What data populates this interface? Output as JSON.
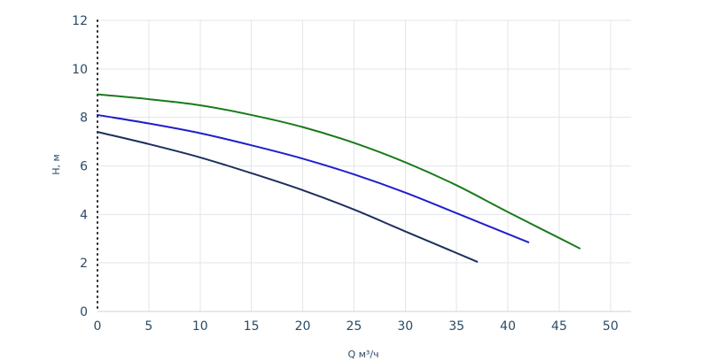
{
  "chart_data": {
    "type": "line",
    "xlabel": "Q м³/ч",
    "ylabel": "H, м",
    "xlim": [
      0,
      52
    ],
    "ylim": [
      0,
      12
    ],
    "xticks": [
      0,
      5,
      10,
      15,
      20,
      25,
      30,
      35,
      40,
      45,
      50
    ],
    "yticks": [
      0,
      2,
      4,
      6,
      8,
      10,
      12
    ],
    "grid": true,
    "series": [
      {
        "color": "#1a7a1a",
        "x": [
          0,
          5,
          10,
          15,
          20,
          25,
          30,
          35,
          40,
          47
        ],
        "y": [
          8.95,
          8.75,
          8.5,
          8.1,
          7.6,
          6.95,
          6.15,
          5.2,
          4.1,
          2.6
        ]
      },
      {
        "color": "#1f1fcc",
        "x": [
          0,
          5,
          10,
          15,
          20,
          25,
          30,
          35,
          42
        ],
        "y": [
          8.1,
          7.75,
          7.35,
          6.85,
          6.3,
          5.65,
          4.9,
          4.05,
          2.85
        ]
      },
      {
        "color": "#1c2f5e",
        "x": [
          0,
          5,
          10,
          15,
          20,
          25,
          30,
          37
        ],
        "y": [
          7.4,
          6.9,
          6.35,
          5.7,
          5.0,
          4.2,
          3.3,
          2.05
        ]
      }
    ]
  }
}
